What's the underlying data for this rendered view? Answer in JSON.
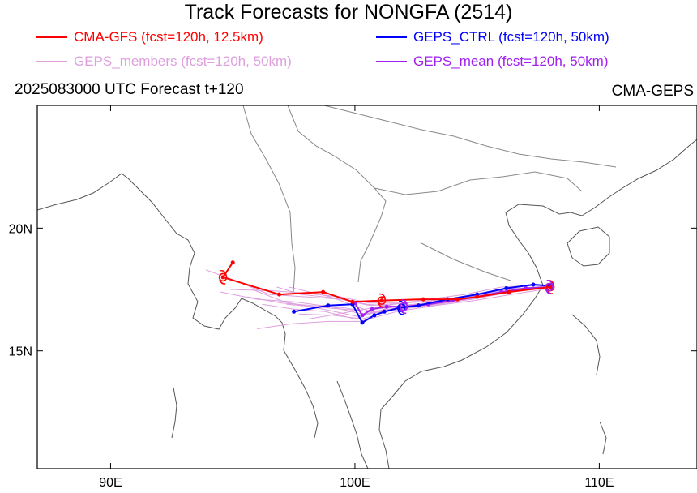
{
  "title": "Track Forecasts for NONGFA (2514)",
  "legend": [
    {
      "label": "CMA-GFS (fcst=120h, 12.5km)",
      "color": "#ff0000"
    },
    {
      "label": "GEPS_CTRL (fcst=120h, 50km)",
      "color": "#0000ff"
    },
    {
      "label": "GEPS_members (fcst=120h, 50km)",
      "color": "#dda0dd"
    },
    {
      "label": "GEPS_mean (fcst=120h, 50km)",
      "color": "#a020f0"
    }
  ],
  "subtitle_left": "2025083000 UTC Forecast t+120",
  "subtitle_right": "CMA-GEPS",
  "map": {
    "lon_range": [
      87,
      114
    ],
    "lat_range": [
      10.2,
      25.0
    ],
    "x_ticks": [
      {
        "value": 90,
        "label": "90E"
      },
      {
        "value": 100,
        "label": "100E"
      },
      {
        "value": 110,
        "label": "110E"
      }
    ],
    "y_ticks": [
      {
        "value": 15,
        "label": "15N"
      },
      {
        "value": 20,
        "label": "20N"
      }
    ]
  },
  "chart_data": {
    "type": "line",
    "title": "Track Forecasts for NONGFA (2514)",
    "xlabel": "",
    "ylabel": "",
    "xlim": [
      87,
      114
    ],
    "ylim": [
      10.2,
      25.0
    ],
    "series": [
      {
        "name": "CMA-GFS (fcst=120h, 12.5km)",
        "color": "#ff0000",
        "lon": [
          108.0,
          106.3,
          105.0,
          104.2,
          102.8,
          101.1,
          99.9,
          98.7,
          96.9,
          94.6,
          95.0
        ],
        "lat": [
          17.6,
          17.4,
          17.2,
          17.1,
          17.1,
          17.05,
          17.0,
          17.4,
          17.3,
          18.0,
          18.6
        ]
      },
      {
        "name": "GEPS_CTRL (fcst=120h, 50km)",
        "color": "#0000ff",
        "lon": [
          108.0,
          107.3,
          106.2,
          105.0,
          103.8,
          102.6,
          101.8,
          101.2,
          100.8,
          100.3,
          99.9,
          98.9,
          97.5
        ],
        "lat": [
          17.65,
          17.7,
          17.55,
          17.3,
          17.1,
          16.85,
          16.75,
          16.6,
          16.45,
          16.15,
          16.9,
          16.85,
          16.6
        ]
      },
      {
        "name": "GEPS_mean (fcst=120h, 50km)",
        "color": "#a020f0",
        "lon": [
          108.0,
          107.0,
          106.0,
          105.0,
          104.0,
          103.0,
          102.0,
          101.3,
          100.7,
          100.3,
          100.0
        ],
        "lat": [
          17.6,
          17.55,
          17.4,
          17.2,
          17.05,
          16.9,
          16.8,
          16.8,
          16.7,
          16.45,
          16.95
        ]
      },
      {
        "name": "GEPS_members (fcst=120h, 50km)",
        "color": "#dda0dd",
        "tracks": [
          {
            "lon": [
              108.0,
              106.5,
              105.0,
              103.5,
              102.0,
              100.5,
              99.5,
              98.0,
              96.5,
              95.0,
              93.9
            ],
            "lat": [
              17.6,
              17.5,
              17.2,
              17.0,
              16.8,
              16.9,
              17.1,
              17.2,
              17.3,
              17.9,
              18.3
            ]
          },
          {
            "lon": [
              108.0,
              106.3,
              104.8,
              103.2,
              101.8,
              100.3,
              99.0,
              97.5,
              96.0,
              94.5
            ],
            "lat": [
              17.6,
              17.4,
              17.1,
              16.9,
              16.7,
              16.5,
              16.8,
              17.0,
              17.1,
              17.4
            ]
          },
          {
            "lon": [
              108.0,
              106.2,
              104.6,
              103.0,
              101.5,
              100.0,
              98.8,
              97.5,
              96.2
            ],
            "lat": [
              17.65,
              17.5,
              17.2,
              16.95,
              16.8,
              16.3,
              16.6,
              16.7,
              16.9
            ]
          },
          {
            "lon": [
              108.0,
              106.6,
              105.2,
              103.6,
              102.1,
              100.6,
              99.2,
              97.8,
              96.8
            ],
            "lat": [
              17.6,
              17.5,
              17.3,
              17.1,
              16.95,
              16.85,
              17.15,
              17.3,
              17.6
            ]
          },
          {
            "lon": [
              108.0,
              106.4,
              104.9,
              103.3,
              101.7,
              100.2,
              98.9,
              97.4,
              96.0
            ],
            "lat": [
              17.55,
              17.3,
              17.05,
              16.85,
              16.6,
              16.2,
              16.2,
              16.1,
              15.9
            ]
          },
          {
            "lon": [
              108.0,
              106.0,
              104.5,
              103.0,
              101.6,
              100.4,
              99.3,
              98.1
            ],
            "lat": [
              17.7,
              17.6,
              17.3,
              17.1,
              16.9,
              16.7,
              16.5,
              16.3
            ]
          },
          {
            "lon": [
              108.0,
              106.7,
              105.3,
              103.8,
              102.3,
              100.8,
              99.6,
              98.2,
              97.0,
              95.6
            ],
            "lat": [
              17.6,
              17.45,
              17.2,
              16.95,
              16.75,
              16.55,
              16.75,
              16.85,
              16.95,
              17.2
            ]
          },
          {
            "lon": [
              108.0,
              106.5,
              105.0,
              103.4,
              101.9,
              100.5,
              99.0,
              97.3
            ],
            "lat": [
              17.6,
              17.5,
              17.25,
              17.0,
              16.85,
              16.65,
              17.2,
              17.6
            ]
          },
          {
            "lon": [
              108.0,
              106.3,
              104.7,
              103.1,
              101.6,
              100.1,
              98.7,
              97.1,
              95.8
            ],
            "lat": [
              17.6,
              17.4,
              17.15,
              16.95,
              16.8,
              16.4,
              16.7,
              17.0,
              17.5
            ]
          },
          {
            "lon": [
              108.0,
              106.5,
              105.0,
              103.5,
              102.0,
              100.6,
              99.4,
              98.0,
              96.6,
              94.9
            ],
            "lat": [
              17.6,
              17.55,
              17.3,
              17.05,
              16.95,
              16.95,
              17.2,
              17.35,
              17.45,
              17.5
            ]
          },
          {
            "lon": [
              108.0,
              106.4,
              104.8,
              103.2,
              101.7,
              100.3,
              99.1,
              97.7
            ],
            "lat": [
              17.6,
              17.45,
              17.15,
              16.95,
              16.7,
              16.3,
              16.45,
              16.5
            ]
          },
          {
            "lon": [
              108.0,
              106.6,
              105.1,
              103.6,
              102.1,
              100.7,
              99.5,
              98.3,
              97.2
            ],
            "lat": [
              17.6,
              17.5,
              17.25,
              17.0,
              16.8,
              16.6,
              16.7,
              16.8,
              16.9
            ]
          }
        ]
      }
    ],
    "markers": [
      {
        "series": "CMA-GFS (fcst=120h, 12.5km)",
        "symbol": "typhoon",
        "lon": 94.6,
        "lat": 18.0
      },
      {
        "series": "CMA-GFS (fcst=120h, 12.5km)",
        "symbol": "typhoon",
        "lon": 101.1,
        "lat": 17.05
      },
      {
        "series": "CMA-GFS (fcst=120h, 12.5km)",
        "symbol": "typhoon",
        "lon": 108.0,
        "lat": 17.6
      },
      {
        "series": "GEPS_CTRL (fcst=120h, 50km)",
        "symbol": "typhoon",
        "lon": 101.9,
        "lat": 16.75
      },
      {
        "series": "GEPS_mean (fcst=120h, 50km)",
        "symbol": "typhoon",
        "lon": 102.0,
        "lat": 16.8
      },
      {
        "series": "GEPS_mean (fcst=120h, 50km)",
        "symbol": "typhoon",
        "lon": 107.95,
        "lat": 17.6
      }
    ],
    "grid": false
  }
}
